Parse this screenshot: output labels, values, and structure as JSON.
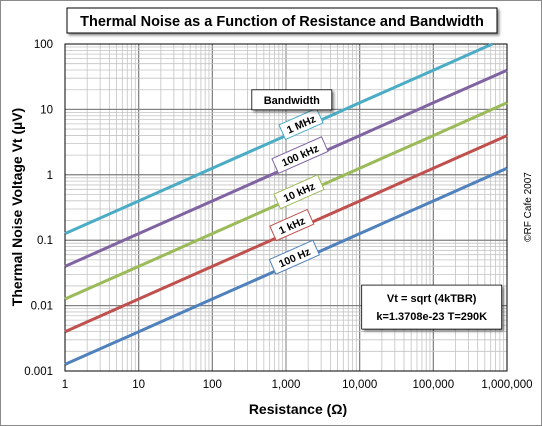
{
  "chart_data": {
    "type": "line",
    "title": "Thermal Noise as a Function of Resistance and Bandwidth",
    "xlabel": "Resistance (Ω)",
    "ylabel": "Thermal Noise Voltage Vt (µV)",
    "x_scale": "log",
    "y_scale": "log",
    "xlim": [
      1,
      1000000
    ],
    "ylim": [
      0.001,
      100
    ],
    "x_ticks": [
      {
        "value": 1,
        "label": "1"
      },
      {
        "value": 10,
        "label": "10"
      },
      {
        "value": 100,
        "label": "100"
      },
      {
        "value": 1000,
        "label": "1,000"
      },
      {
        "value": 10000,
        "label": "10,000"
      },
      {
        "value": 100000,
        "label": "100,000"
      },
      {
        "value": 1000000,
        "label": "1,000,000"
      }
    ],
    "y_ticks": [
      {
        "value": 0.001,
        "label": "0.001"
      },
      {
        "value": 0.01,
        "label": "0.01"
      },
      {
        "value": 0.1,
        "label": "0.1"
      },
      {
        "value": 1,
        "label": "1"
      },
      {
        "value": 10,
        "label": "10"
      },
      {
        "value": 100,
        "label": "100"
      }
    ],
    "grid": true,
    "legend_title": "Bandwidth",
    "x": [
      1,
      10,
      100,
      1000,
      10000,
      100000,
      1000000
    ],
    "series": [
      {
        "name": "1 MHz",
        "color": "#4bacc6",
        "values": [
          0.126,
          0.398,
          1.26,
          3.98,
          12.6,
          39.8,
          126
        ]
      },
      {
        "name": "100 kHz",
        "color": "#8064a2",
        "values": [
          0.0398,
          0.126,
          0.398,
          1.26,
          3.98,
          12.6,
          39.8
        ]
      },
      {
        "name": "10 kHz",
        "color": "#9bbb59",
        "values": [
          0.0126,
          0.0398,
          0.126,
          0.398,
          1.26,
          3.98,
          12.6
        ]
      },
      {
        "name": "1 kHz",
        "color": "#c0504d",
        "values": [
          0.00398,
          0.0126,
          0.0398,
          0.126,
          0.398,
          1.26,
          3.98
        ]
      },
      {
        "name": "100 Hz",
        "color": "#4f81bd",
        "values": [
          0.00126,
          0.00398,
          0.0126,
          0.0398,
          0.126,
          0.398,
          1.26
        ]
      }
    ],
    "series_label_points": [
      {
        "x": 1600,
        "y": 6.0
      },
      {
        "x": 1550,
        "y": 2.0
      },
      {
        "x": 1500,
        "y": 0.55
      },
      {
        "x": 1200,
        "y": 0.17
      },
      {
        "x": 1300,
        "y": 0.055
      }
    ],
    "legend_anchor": {
      "x": 1200,
      "y": 14
    },
    "formula_lines": [
      "Vt = sqrt (4kTBR)",
      "k=1.3708e-23   T=290K"
    ],
    "formula_anchor": {
      "x": 95000,
      "y": 0.0095
    },
    "credit": "©RF Cafe 2007"
  }
}
